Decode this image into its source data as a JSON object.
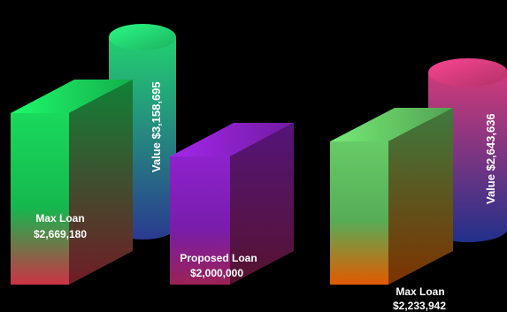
{
  "chart_data": {
    "type": "bar",
    "style": "3d-box-and-cylinder",
    "groups": [
      {
        "bars": [
          {
            "label": "Max Loan",
            "value_text": "$2,669,180",
            "value": 2669180,
            "shape": "box",
            "colors": [
              "#19d95c",
              "#cc3344"
            ]
          },
          {
            "label": "Value",
            "value_text": "$3,158,695",
            "value": 3158695,
            "shape": "cylinder",
            "colors": [
              "#22d070",
              "#2a3a90"
            ]
          }
        ]
      },
      {
        "bars": [
          {
            "label": "Proposed Loan",
            "value_text": "$2,000,000",
            "value": 2000000,
            "shape": "box",
            "colors": [
              "#8e22cc",
              "#9a2255"
            ]
          }
        ]
      },
      {
        "bars": [
          {
            "label": "Max Loan",
            "value_text": "$2,233,942",
            "value": 2233942,
            "shape": "box",
            "colors": [
              "#66cc66",
              "#e35a00"
            ]
          },
          {
            "label": "Value",
            "value_text": "$2,643,636",
            "value": 2643636,
            "shape": "cylinder",
            "colors": [
              "#d03a7a",
              "#22308a"
            ]
          }
        ]
      }
    ],
    "background": "#000000",
    "grid": false,
    "legend": "none"
  }
}
